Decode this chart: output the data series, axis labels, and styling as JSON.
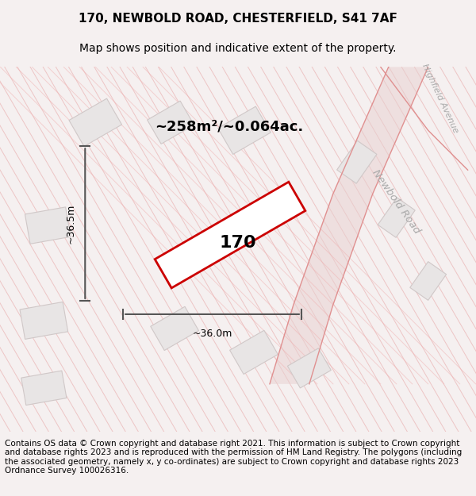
{
  "title_line1": "170, NEWBOLD ROAD, CHESTERFIELD, S41 7AF",
  "title_line2": "Map shows position and indicative extent of the property.",
  "footer_text": "Contains OS data © Crown copyright and database right 2021. This information is subject to Crown copyright and database rights 2023 and is reproduced with the permission of HM Land Registry. The polygons (including the associated geometry, namely x, y co-ordinates) are subject to Crown copyright and database rights 2023 Ordnance Survey 100026316.",
  "area_label": "~258m²/~0.064ac.",
  "property_label": "170",
  "dim_width": "~36.0m",
  "dim_height": "~36.5m",
  "bg_color": "#f5f0f0",
  "map_bg": "#f7f2f2",
  "plot_color_fill": "#ffffff",
  "plot_color_edge": "#cc0000",
  "road_label1": "Newbold Road",
  "road_label2": "Highfield Avenue",
  "title_fontsize": 11,
  "subtitle_fontsize": 10,
  "footer_fontsize": 7.5
}
